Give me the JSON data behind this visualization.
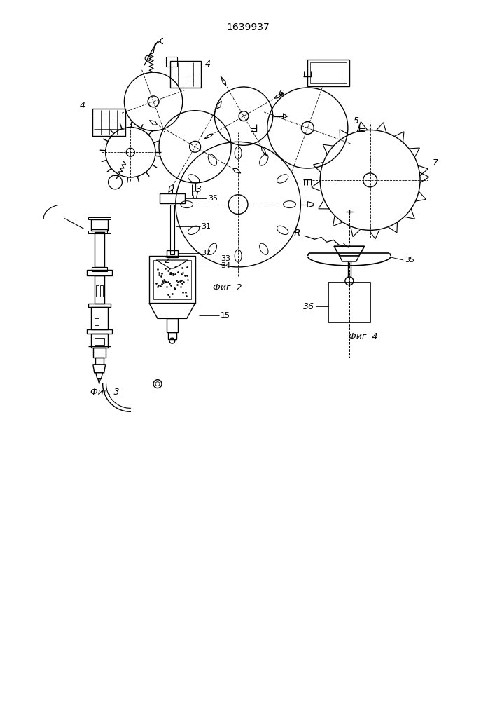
{
  "title": "1639937",
  "fig2_label": "Фиг. 2",
  "fig3_label": "Фиг. 3",
  "fig4_label": "Фиг. 4",
  "bg_color": "#ffffff",
  "line_color": "#000000"
}
